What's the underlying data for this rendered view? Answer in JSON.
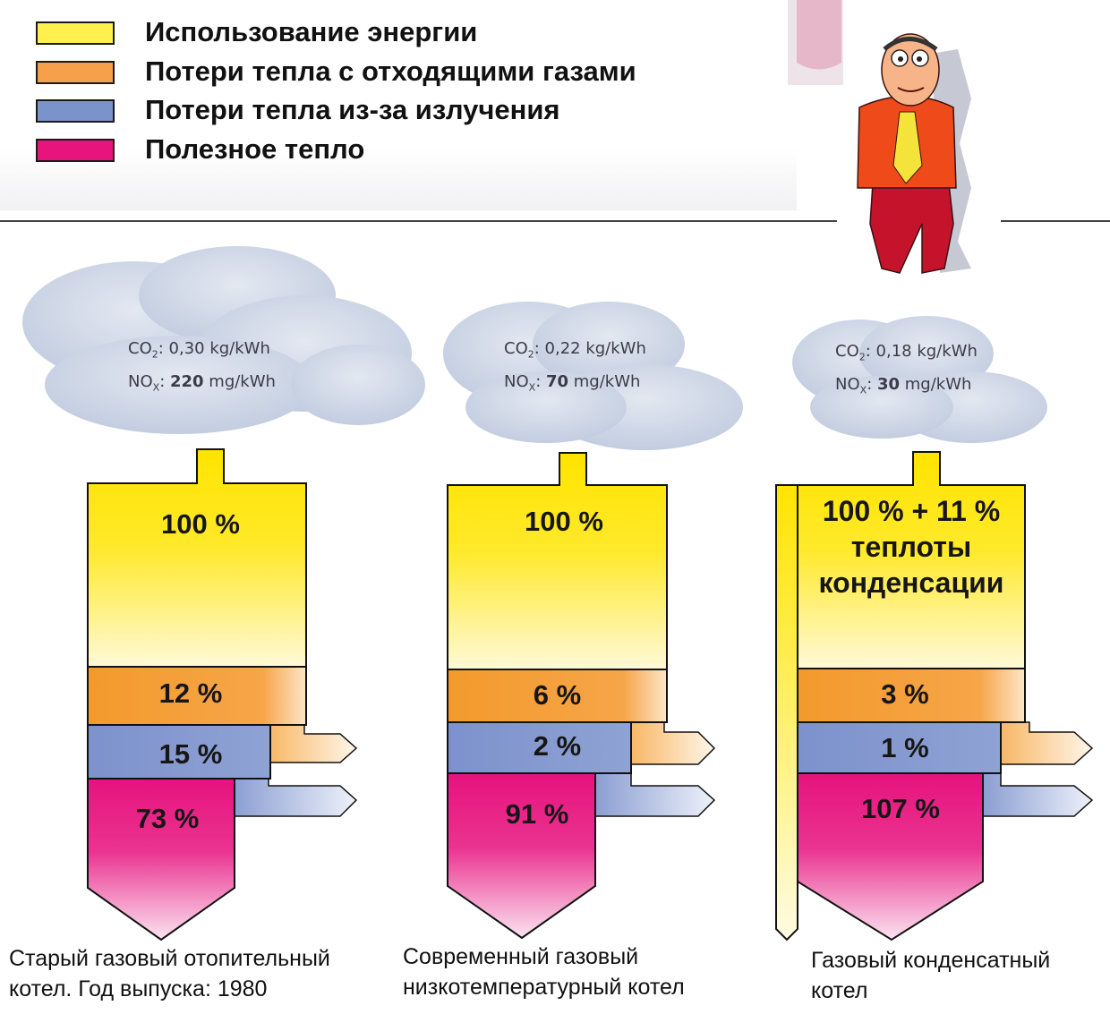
{
  "legend": [
    {
      "label": "Использование энергии",
      "color": "#fff04d"
    },
    {
      "label": "Потери тепла с отходящими газами",
      "color": "#f7a04c"
    },
    {
      "label": "Потери тепла из-за излучения",
      "color": "#7a93cb"
    },
    {
      "label": "Полезное тепло",
      "color": "#e8147e"
    }
  ],
  "boilers": [
    {
      "emissions": {
        "co2_prefix": "CO",
        "co2_sub": "2",
        "co2_value": ": 0,30 kg/kWh",
        "nox_prefix": "NO",
        "nox_sub": "X",
        "nox_sep": ": ",
        "nox_num": "220",
        "nox_unit": " mg/kWh"
      },
      "energy_use": "100 %",
      "flue_loss": "12 %",
      "radiation_loss": "15 %",
      "useful_heat": "73 %",
      "caption_line1": "Старый газовый отопительный",
      "caption_line2": "котел. Год выпуска: 1980"
    },
    {
      "emissions": {
        "co2_prefix": "CO",
        "co2_sub": "2",
        "co2_value": ": 0,22 kg/kWh",
        "nox_prefix": "NO",
        "nox_sub": "X",
        "nox_sep": ": ",
        "nox_num": "70",
        "nox_unit": " mg/kWh"
      },
      "energy_use": "100 %",
      "flue_loss": "6 %",
      "radiation_loss": "2 %",
      "useful_heat": "91 %",
      "caption_line1": "Современный газовый",
      "caption_line2": "низкотемпературный котел"
    },
    {
      "emissions": {
        "co2_prefix": "CO",
        "co2_sub": "2",
        "co2_value": ": 0,18 kg/kWh",
        "nox_prefix": "NO",
        "nox_sub": "X",
        "nox_sep": ": ",
        "nox_num": "30",
        "nox_unit": " mg/kWh"
      },
      "energy_use_line1": "100 % + 11 %",
      "energy_use_line2": "теплоты",
      "energy_use_line3": "конденсации",
      "flue_loss": "3 %",
      "radiation_loss": "1 %",
      "useful_heat": "107 %",
      "caption_line1": "Газовый конденсатный",
      "caption_line2": "котел"
    }
  ],
  "colors": {
    "yellow": "#ffe400",
    "orange": "#f39a2c",
    "blue": "#7d92cc",
    "magenta": "#e6137d",
    "cloud": "#c9d3e3"
  }
}
